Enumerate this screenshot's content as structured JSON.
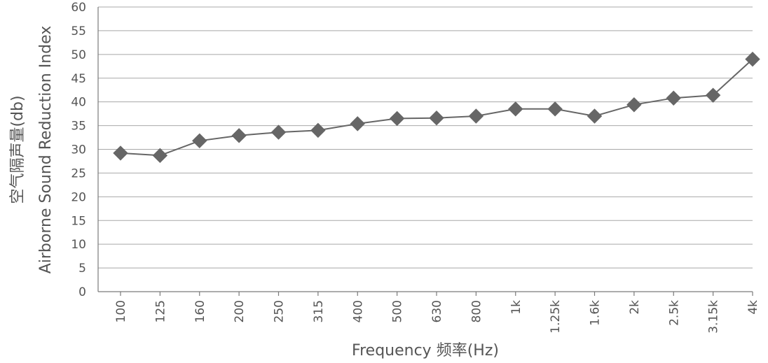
{
  "chart_data": {
    "type": "line",
    "title": "",
    "xlabel": "Frequency 频率(Hz)",
    "ylabel_lines": [
      "空气隔声量(db)",
      "Airborne Sound Reduction Index"
    ],
    "categories": [
      "100",
      "125",
      "160",
      "200",
      "250",
      "315",
      "400",
      "500",
      "630",
      "800",
      "1k",
      "1.25k",
      "1.6k",
      "2k",
      "2.5k",
      "3.15k",
      "4k"
    ],
    "ylim": [
      0,
      60
    ],
    "yticks": [
      0,
      5,
      10,
      15,
      20,
      25,
      30,
      35,
      40,
      45,
      50,
      55,
      60
    ],
    "grid": "horizontal",
    "legend": "none",
    "series": [
      {
        "values": [
          29.2,
          28.7,
          31.8,
          32.9,
          33.6,
          34.0,
          35.4,
          36.5,
          36.6,
          37.0,
          38.5,
          38.5,
          37.0,
          39.4,
          40.8,
          41.4,
          49.0
        ],
        "marker": "diamond",
        "color": "#666666"
      }
    ]
  }
}
